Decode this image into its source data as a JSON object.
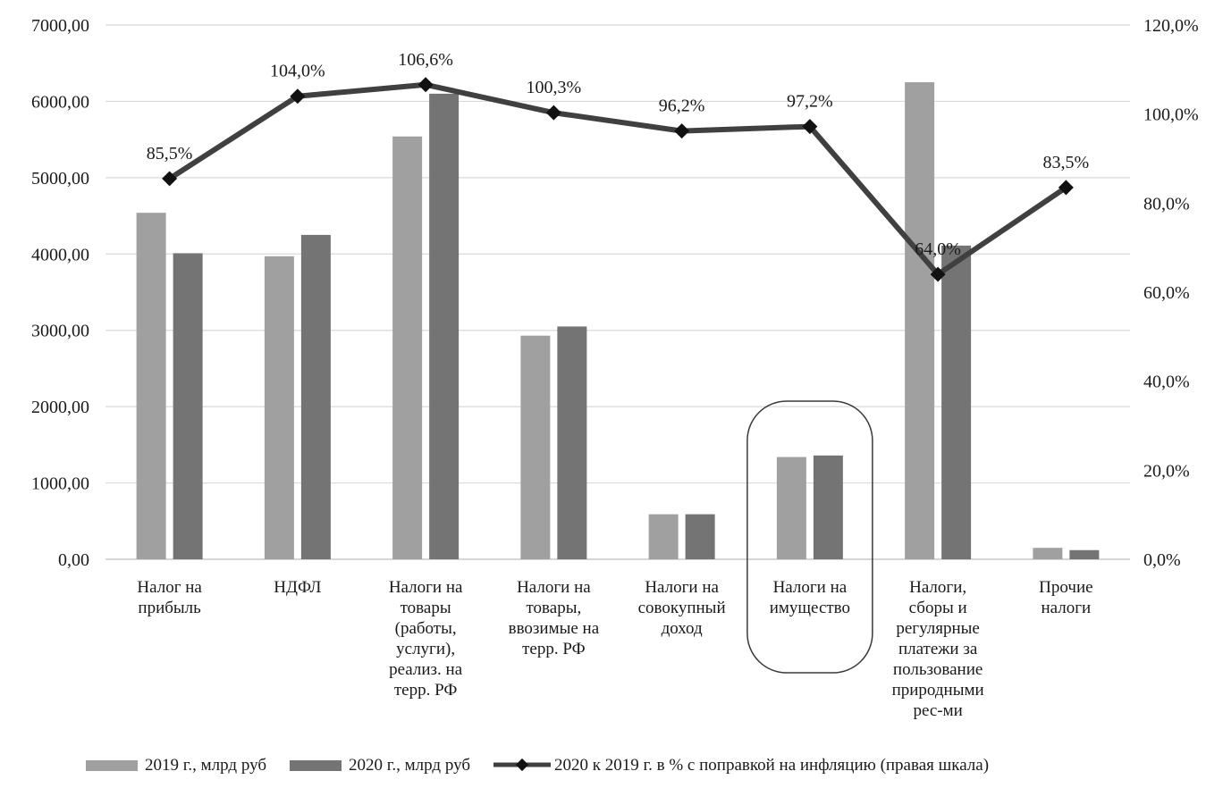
{
  "chart_data": {
    "type": "bar",
    "categories": [
      [
        "Налог на",
        "прибыль"
      ],
      [
        "НДФЛ"
      ],
      [
        "Налоги на",
        "товары",
        "(работы,",
        "услуги),",
        "реализ. на",
        "терр. РФ"
      ],
      [
        "Налоги на",
        "товары,",
        "ввозимые на",
        "терр. РФ"
      ],
      [
        "Налоги на",
        "совокупный",
        "доход"
      ],
      [
        "Налоги на",
        "имущество"
      ],
      [
        "Налоги,",
        "сборы и",
        "регулярные",
        "платежи  за",
        "пользование",
        "природными",
        "рес-ми"
      ],
      [
        "Прочие",
        "налоги"
      ]
    ],
    "series": [
      {
        "name": "2019 г., млрд руб",
        "type": "bar",
        "axis": "left",
        "color": "#a0a0a0",
        "values": [
          4540,
          3970,
          5540,
          2930,
          590,
          1340,
          6250,
          150
        ]
      },
      {
        "name": "2020 г., млрд руб",
        "type": "bar",
        "axis": "left",
        "color": "#747474",
        "values": [
          4010,
          4250,
          6100,
          3050,
          590,
          1360,
          4110,
          120
        ]
      },
      {
        "name": "2020 к 2019 г. в % с поправкой на инфляцию  (правая шкала)",
        "type": "line",
        "axis": "right",
        "color": "#404040",
        "values": [
          85.5,
          104.0,
          106.6,
          100.3,
          96.2,
          97.2,
          64.0,
          83.5
        ],
        "labels": [
          "85,5%",
          "104,0%",
          "106,6%",
          "100,3%",
          "96,2%",
          "97,2%",
          "64,0%",
          "83,5%"
        ]
      }
    ],
    "ylim": [
      0,
      7000
    ],
    "y_ticks": [
      "0,00",
      "1000,00",
      "2000,00",
      "3000,00",
      "4000,00",
      "5000,00",
      "6000,00",
      "7000,00"
    ],
    "y2lim": [
      0,
      120
    ],
    "y2_ticks": [
      "0,0%",
      "20,0%",
      "40,0%",
      "60,0%",
      "80,0%",
      "100,0%",
      "120,0%"
    ],
    "grid": true,
    "legend_position": "bottom",
    "highlighted_category": 5
  }
}
